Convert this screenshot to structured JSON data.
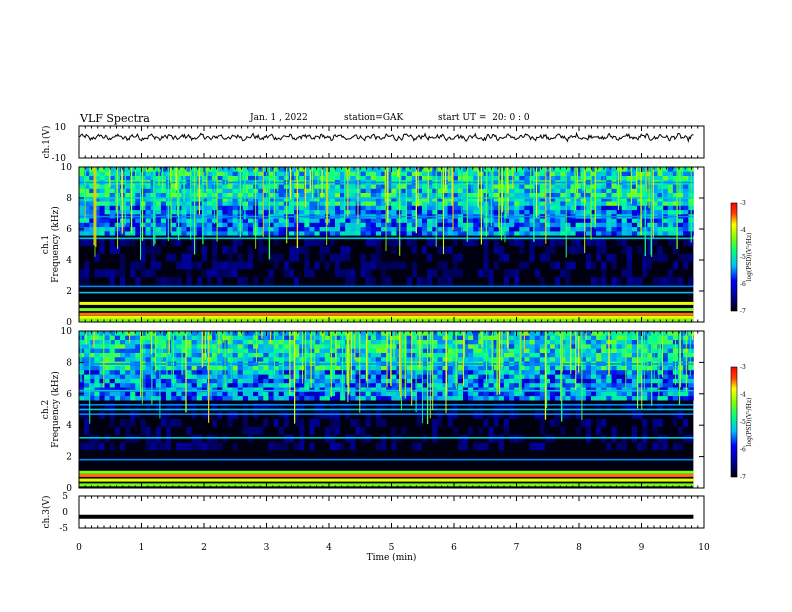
{
  "header": {
    "title": "VLF Spectra",
    "date": "Jan. 1 , 2022",
    "station": "station=GAK",
    "start": "start UT =  20: 0 : 0"
  },
  "chart_data": [
    {
      "type": "line",
      "panel": "ch1-waveform",
      "ylabel": "ch.1(V)",
      "ylim": [
        -10,
        10
      ],
      "yticks": [
        "10",
        "-10"
      ],
      "xlim": [
        0,
        10
      ],
      "baseline_value": 3,
      "color": "#000000"
    },
    {
      "type": "heatmap",
      "panel": "ch1-spectrogram",
      "ylabel": "ch.1",
      "ylabel2": "Frequency (kHz)",
      "ylim": [
        0,
        10
      ],
      "yticks": [
        "0",
        "2",
        "4",
        "6",
        "8",
        "10"
      ],
      "xlim": [
        0,
        10
      ],
      "data_end_min": 9.83,
      "bands_khz": [
        0.1,
        0.3,
        0.5,
        0.8,
        1.2,
        1.9,
        2.3,
        5.4,
        6.8,
        8.0,
        9.0
      ],
      "colorbar": {
        "label": "log(PSD)(V²/Hz)",
        "ticks": [
          "-3",
          "-4",
          "-5",
          "-6",
          "-7"
        ],
        "range": [
          -7,
          -3
        ]
      }
    },
    {
      "type": "heatmap",
      "panel": "ch2-spectrogram",
      "ylabel": "ch.2",
      "ylabel2": "Frequency (kHz)",
      "ylim": [
        0,
        10
      ],
      "yticks": [
        "0",
        "2",
        "4",
        "6",
        "8",
        "10"
      ],
      "xlim": [
        0,
        10
      ],
      "data_end_min": 9.83,
      "bands_khz": [
        0.2,
        0.5,
        0.8,
        1.0,
        1.8,
        3.2,
        4.7,
        5.0,
        5.3,
        6.2,
        7.9
      ],
      "colorbar": {
        "label": "log(PSD)(V²/Hz)",
        "ticks": [
          "-3",
          "-4",
          "-5",
          "-6",
          "-7"
        ],
        "range": [
          -7,
          -3
        ]
      }
    },
    {
      "type": "line",
      "panel": "ch3-waveform",
      "ylabel": "ch.3(V)",
      "ylim": [
        -5,
        5
      ],
      "yticks": [
        "5",
        "0",
        "-5"
      ],
      "xlim": [
        0,
        10
      ],
      "xlabel": "Time (min)",
      "xticks": [
        "0",
        "1",
        "2",
        "3",
        "4",
        "5",
        "6",
        "7",
        "8",
        "9",
        "10"
      ],
      "baseline_value": -1.5,
      "color": "#000000"
    }
  ]
}
